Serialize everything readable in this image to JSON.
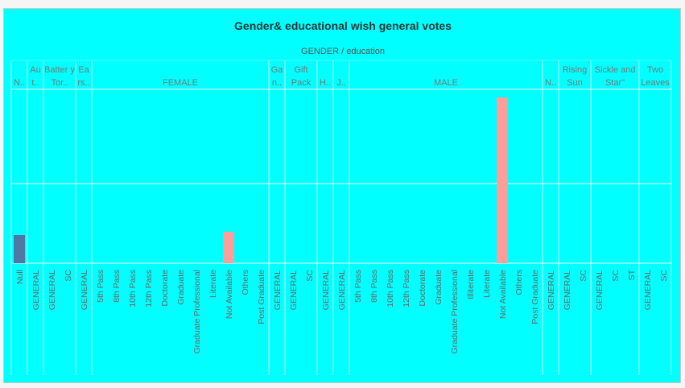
{
  "chart_data": {
    "type": "bar",
    "title": "Gender& educational wish general votes",
    "column_header": "GENDER / education",
    "ylim": [
      0,
      100
    ],
    "colors": {
      "default": "#4e79a7",
      "highlight": "#ff9d9a",
      "background": "#00ffff",
      "grid": "#ffffff"
    },
    "groups": [
      {
        "label": "N..",
        "categories": [
          "Null"
        ]
      },
      {
        "label": "Au t..",
        "categories": [
          "GENERAL"
        ]
      },
      {
        "label": "Batter y Tor..",
        "categories": [
          "GENERAL",
          "SC"
        ]
      },
      {
        "label": "Ea rs..",
        "categories": [
          "GENERAL"
        ]
      },
      {
        "label": "FEMALE",
        "categories": [
          "5th Pass",
          "8th Pass",
          "10th Pass",
          "12th Pass",
          "Doctorate",
          "Graduate",
          "Graduate Professional",
          "Literate",
          "Not Available",
          "Others",
          "Post Graduate"
        ]
      },
      {
        "label": "Ga n..",
        "categories": [
          "GENERAL"
        ]
      },
      {
        "label": "Gift Pack",
        "categories": [
          "GENERAL",
          "SC"
        ]
      },
      {
        "label": "H..",
        "categories": [
          "GENERAL"
        ]
      },
      {
        "label": "J..",
        "categories": [
          "GENERAL"
        ]
      },
      {
        "label": "MALE",
        "categories": [
          "5th Pass",
          "8th Pass",
          "10th Pass",
          "12th Pass",
          "Doctorate",
          "Graduate",
          "Graduate Professional",
          "Illiterate",
          "Literate",
          "Not Available",
          "Others",
          "Post Graduate"
        ]
      },
      {
        "label": "N..",
        "categories": [
          "GENERAL"
        ]
      },
      {
        "label": "Rising Sun",
        "categories": [
          "GENERAL",
          "SC"
        ]
      },
      {
        "label": "Sickle and Star\"",
        "categories": [
          "GENERAL",
          "SC",
          "ST"
        ]
      },
      {
        "label": "Two Leaves",
        "categories": [
          "GENERAL",
          "SC"
        ]
      }
    ],
    "bars": [
      {
        "group": 0,
        "category": "Null",
        "value": 17,
        "color": "#4e79a7"
      },
      {
        "group": 4,
        "category": "Not Available",
        "value": 19,
        "color": "#ff9d9a"
      },
      {
        "group": 9,
        "category": "Not Available",
        "value": 100,
        "color": "#ff9d9a"
      }
    ]
  }
}
